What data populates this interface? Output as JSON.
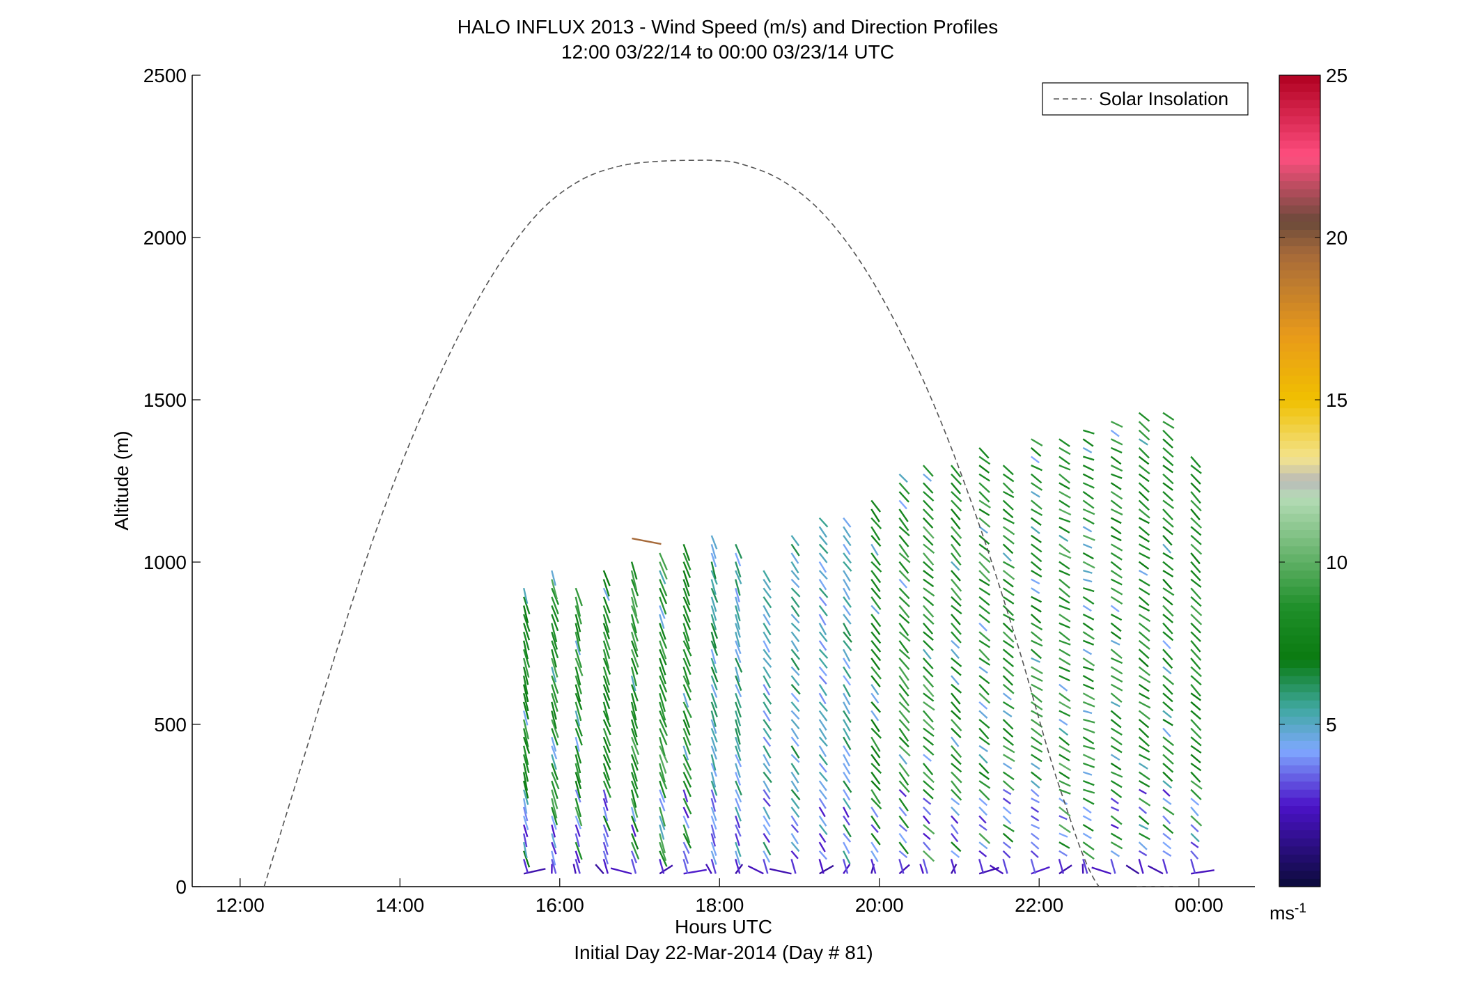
{
  "chart_data": {
    "type": "wind-barb-profile",
    "title": "HALO INFLUX 2013 - Wind Speed (m/s) and Direction Profiles",
    "subtitle": "12:00 03/22/14 to 00:00 03/23/14  UTC",
    "xlabel": "Hours UTC",
    "xlabel2": "Initial Day 22-Mar-2014 (Day # 81)",
    "ylabel": "Altitude (m)",
    "xlim_hours": [
      11.4,
      24.7
    ],
    "ylim": [
      0,
      2500
    ],
    "x_ticks": [
      {
        "hour": 12,
        "label": "12:00"
      },
      {
        "hour": 14,
        "label": "14:00"
      },
      {
        "hour": 16,
        "label": "16:00"
      },
      {
        "hour": 18,
        "label": "18:00"
      },
      {
        "hour": 20,
        "label": "20:00"
      },
      {
        "hour": 22,
        "label": "22:00"
      },
      {
        "hour": 24,
        "label": "00:00"
      }
    ],
    "y_ticks": [
      {
        "value": 0,
        "label": "0"
      },
      {
        "value": 500,
        "label": "500"
      },
      {
        "value": 1000,
        "label": "1000"
      },
      {
        "value": 1500,
        "label": "1500"
      },
      {
        "value": 2000,
        "label": "2000"
      },
      {
        "value": 2500,
        "label": "2500"
      }
    ],
    "legend": {
      "label": "Solar Insolation",
      "position": "top-right",
      "line_color": "#555555",
      "dash": "dashed"
    },
    "solar_insolation": {
      "x_hours": [
        12.3,
        12.75,
        13.25,
        13.75,
        14.25,
        14.75,
        15.25,
        15.75,
        16.25,
        16.75,
        17.25,
        17.75,
        17.95,
        18.25,
        18.75,
        19.25,
        19.75,
        20.25,
        20.75,
        21.25,
        21.75,
        22.25,
        22.75,
        23.25,
        23.55,
        23.78
      ],
      "y": [
        0,
        360,
        760,
        1130,
        1440,
        1705,
        1920,
        2080,
        2175,
        2220,
        2235,
        2238,
        2237,
        2228,
        2180,
        2085,
        1930,
        1715,
        1445,
        1115,
        730,
        310,
        0,
        0,
        0,
        0
      ]
    },
    "profiles": {
      "time_hours": [
        15.55,
        15.9,
        16.2,
        16.55,
        16.9,
        17.25,
        17.55,
        17.9,
        18.2,
        18.55,
        18.9,
        19.25,
        19.55,
        19.9,
        20.25,
        20.55,
        20.9,
        21.25,
        21.55,
        21.9,
        22.25,
        22.55,
        22.9,
        23.25,
        23.55,
        23.9
      ],
      "top_altitude": [
        920,
        980,
        930,
        1000,
        1020,
        1040,
        1080,
        1100,
        1060,
        1000,
        1100,
        1160,
        1140,
        1200,
        1280,
        1320,
        1300,
        1360,
        1300,
        1380,
        1380,
        1420,
        1450,
        1470,
        1480,
        1340
      ],
      "altitude_step": 27,
      "speed_ms": [
        8.2,
        8.6,
        8.4,
        8.0,
        8.5,
        8.8,
        8.3,
        5.5,
        5.2,
        5.0,
        5.4,
        4.8,
        5.3,
        8.0,
        8.7,
        8.9,
        8.4,
        8.6,
        8.8,
        8.5,
        8.9,
        8.6,
        8.4,
        8.2,
        8.0,
        8.3
      ],
      "direction_deg": [
        155,
        150,
        152,
        148,
        150,
        147,
        145,
        150,
        148,
        130,
        125,
        128,
        130,
        126,
        122,
        118,
        120,
        115,
        112,
        110,
        108,
        105,
        108,
        112,
        115,
        118
      ],
      "surface_speed_ms": [
        2.0,
        2.5,
        2.2,
        1.8,
        2.4,
        2.0,
        2.6,
        2.2,
        1.9,
        2.3,
        2.1,
        1.7,
        2.4,
        2.0,
        2.2,
        2.5,
        1.9,
        2.1,
        2.3,
        2.6,
        2.0,
        2.2,
        2.4,
        1.8,
        2.1,
        2.3
      ],
      "outlier": {
        "time_hours": 17.2,
        "altitude": 1060,
        "speed_ms": 19.5,
        "direction_deg": 80
      }
    },
    "colorbar": {
      "unit_label": "ms-1",
      "min": 0,
      "max": 25,
      "ticks": [
        {
          "value": 5,
          "label": "5"
        },
        {
          "value": 10,
          "label": "10"
        },
        {
          "value": 15,
          "label": "15"
        },
        {
          "value": 20,
          "label": "20"
        },
        {
          "value": 25,
          "label": "25"
        }
      ],
      "stops": [
        {
          "v": 0,
          "c": "#0b0b3a"
        },
        {
          "v": 2.5,
          "c": "#4b12c8"
        },
        {
          "v": 4.2,
          "c": "#7fa8ff"
        },
        {
          "v": 5.5,
          "c": "#3fa8a0"
        },
        {
          "v": 7.0,
          "c": "#0a7a10"
        },
        {
          "v": 8.6,
          "c": "#1f8f2a"
        },
        {
          "v": 12.0,
          "c": "#b6dcb6"
        },
        {
          "v": 12.5,
          "c": "#b9b9b9"
        },
        {
          "v": 13.2,
          "c": "#f3e38e"
        },
        {
          "v": 15.0,
          "c": "#f0c000"
        },
        {
          "v": 17.0,
          "c": "#e89a1a"
        },
        {
          "v": 19.5,
          "c": "#a66a3a"
        },
        {
          "v": 20.5,
          "c": "#6b4a3a"
        },
        {
          "v": 22.5,
          "c": "#ff4f80"
        },
        {
          "v": 25.0,
          "c": "#b00020"
        }
      ]
    }
  }
}
